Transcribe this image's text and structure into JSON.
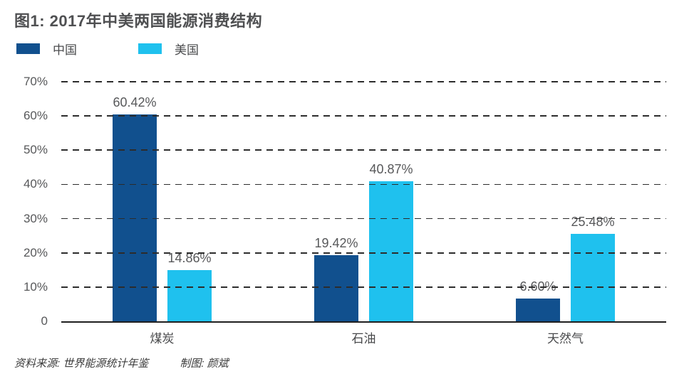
{
  "title": "图1: 2017年中美两国能源消费结构",
  "legend": {
    "items": [
      {
        "label": "中国",
        "color": "#11508e"
      },
      {
        "label": "美国",
        "color": "#1fc1ee"
      }
    ]
  },
  "footer": {
    "source": "资料来源: 世界能源统计年鉴",
    "credit": "制图: 颜斌"
  },
  "chart_data": {
    "type": "bar",
    "title": "图1: 2017年中美两国能源消费结构",
    "categories": [
      "煤炭",
      "石油",
      "天然气"
    ],
    "series": [
      {
        "name": "中国",
        "color": "#11508e",
        "values": [
          60.42,
          19.42,
          6.6
        ],
        "labels": [
          "60.42%",
          "19.42%",
          "6.60%"
        ]
      },
      {
        "name": "美国",
        "color": "#1fc1ee",
        "values": [
          14.86,
          40.87,
          25.48
        ],
        "labels": [
          "14.86%",
          "40.87%",
          "25.48%"
        ]
      }
    ],
    "xlabel": "",
    "ylabel": "",
    "ylim": [
      0,
      70
    ],
    "yticks": [
      {
        "value": 70,
        "label": "70%"
      },
      {
        "value": 60,
        "label": "60%"
      },
      {
        "value": 50,
        "label": "50%"
      },
      {
        "value": 40,
        "label": "40%"
      },
      {
        "value": 30,
        "label": "30%"
      },
      {
        "value": 20,
        "label": "20%"
      },
      {
        "value": 10,
        "label": "10%"
      },
      {
        "value": 0,
        "label": "0"
      }
    ],
    "grid": "horizontal-dashed",
    "legend_position": "top-left"
  }
}
